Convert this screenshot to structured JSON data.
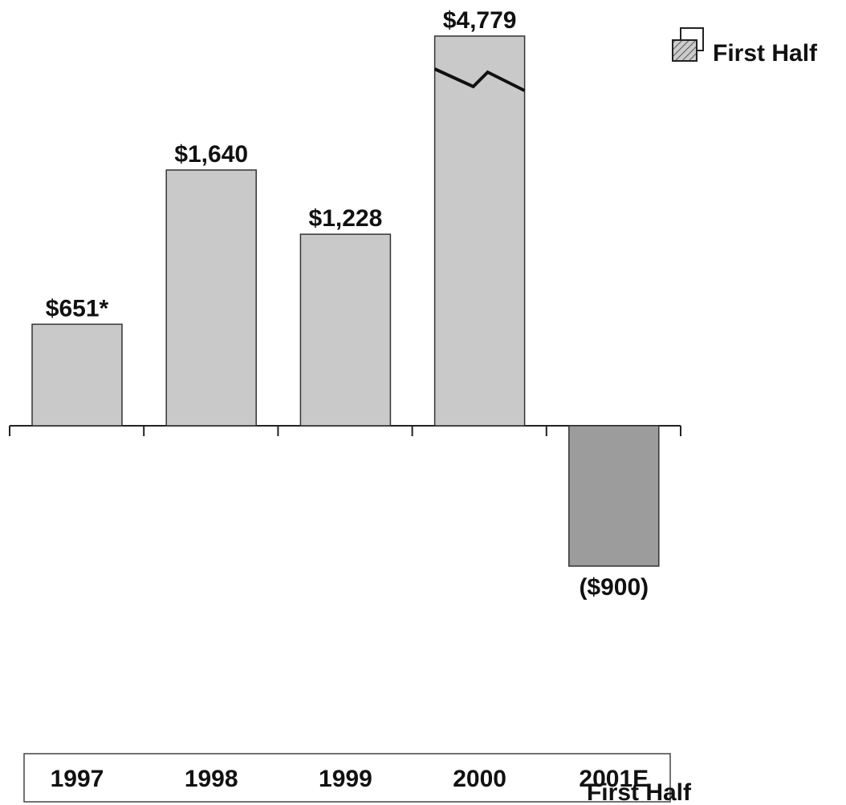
{
  "chart_data": {
    "type": "bar",
    "categories": [
      "1997",
      "1998",
      "1999",
      "2000",
      "2001E"
    ],
    "values": [
      651,
      1640,
      1228,
      4779,
      -900
    ],
    "value_labels": [
      "$651*",
      "$1,640",
      "$1,228",
      "$4,779",
      "($900)"
    ],
    "colors": [
      "#c9c9c9",
      "#c9c9c9",
      "#c9c9c9",
      "#c9c9c9",
      "#9c9c9c"
    ],
    "legend": [
      "First Half"
    ],
    "category_note": "First Half"
  }
}
